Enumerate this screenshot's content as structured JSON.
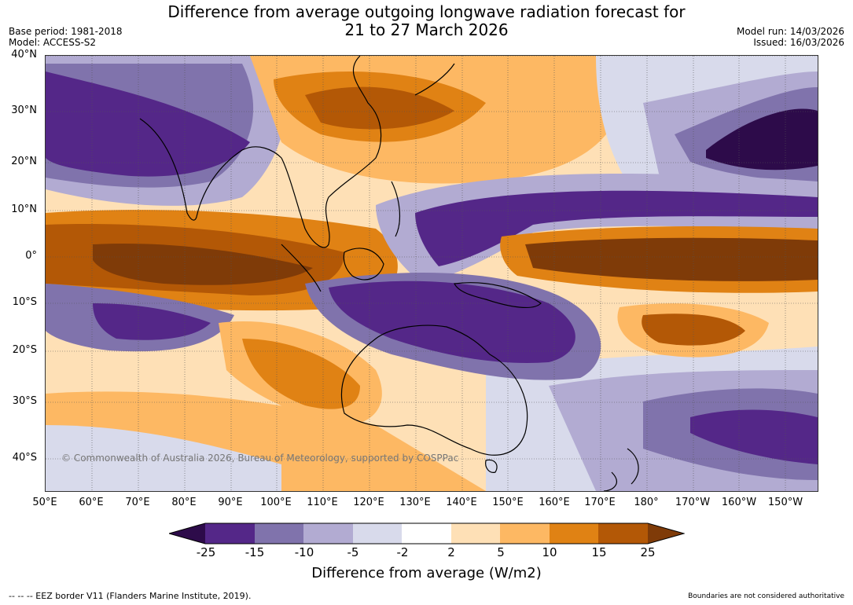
{
  "title": {
    "line1": "Difference from average outgoing longwave radiation forecast for",
    "line2": "21 to 27 March 2026"
  },
  "meta": {
    "base_period": "Base period: 1981-2018",
    "model": "Model: ACCESS-S2",
    "model_run": "Model run: 14/03/2026",
    "issued": "Issued: 16/03/2026"
  },
  "map": {
    "latitude_labels": [
      "40°N",
      "30°N",
      "20°N",
      "10°N",
      "0°",
      "10°S",
      "20°S",
      "30°S",
      "40°S"
    ],
    "longitude_labels": [
      "50°E",
      "60°E",
      "70°E",
      "80°E",
      "90°E",
      "100°E",
      "110°E",
      "120°E",
      "130°E",
      "140°E",
      "150°E",
      "160°E",
      "170°E",
      "180°",
      "170°W",
      "160°W",
      "150°W"
    ],
    "copyright": "© Commonwealth of Australia 2026, Bureau of Meteorology, supported by COSPPac"
  },
  "colorbar": {
    "ticks": [
      "-25",
      "-15",
      "-10",
      "-5",
      "-2",
      "2",
      "5",
      "10",
      "15",
      "25"
    ],
    "colors": [
      "#2d0b4a",
      "#542788",
      "#8073ac",
      "#b2abd2",
      "#d8daeb",
      "#ffffff",
      "#fee0b6",
      "#fdb863",
      "#e08214",
      "#b35806",
      "#7f3b08"
    ],
    "label": "Difference from average (W/m2)"
  },
  "footer": {
    "eez": "--  --  -- EEZ border V11 (Flanders Marine Institute, 2019).",
    "boundaries": "Boundaries are not considered authoritative"
  }
}
